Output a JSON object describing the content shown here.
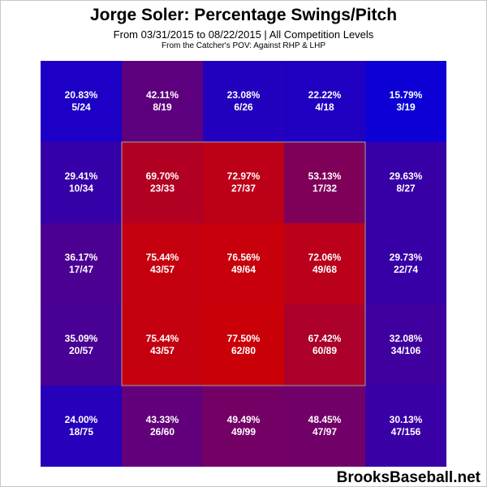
{
  "header": {
    "title": "Jorge Soler: Percentage Swings/Pitch",
    "subtitle": "From 03/31/2015 to 08/22/2015 | All Competition Levels",
    "note": "From the Catcher's POV:  Against RHP & LHP"
  },
  "watermark": "BrooksBaseball.net",
  "colors": {
    "low": "#0a00d8",
    "high": "#d20000",
    "strike_zone_border": "#a0a0a0",
    "text": "#ffffff"
  },
  "chart_data": {
    "type": "heatmap",
    "title": "Jorge Soler: Percentage Swings/Pitch",
    "rows": 5,
    "cols": 5,
    "strike_zone": {
      "rows": [
        1,
        3
      ],
      "cols": [
        1,
        3
      ]
    },
    "grid": false,
    "cells": [
      [
        {
          "pct": "20.83%",
          "frac": "5/24",
          "value": 20.83
        },
        {
          "pct": "42.11%",
          "frac": "8/19",
          "value": 42.11
        },
        {
          "pct": "23.08%",
          "frac": "6/26",
          "value": 23.08
        },
        {
          "pct": "22.22%",
          "frac": "4/18",
          "value": 22.22
        },
        {
          "pct": "15.79%",
          "frac": "3/19",
          "value": 15.79
        }
      ],
      [
        {
          "pct": "29.41%",
          "frac": "10/34",
          "value": 29.41
        },
        {
          "pct": "69.70%",
          "frac": "23/33",
          "value": 69.7
        },
        {
          "pct": "72.97%",
          "frac": "27/37",
          "value": 72.97
        },
        {
          "pct": "53.13%",
          "frac": "17/32",
          "value": 53.13
        },
        {
          "pct": "29.63%",
          "frac": "8/27",
          "value": 29.63
        }
      ],
      [
        {
          "pct": "36.17%",
          "frac": "17/47",
          "value": 36.17
        },
        {
          "pct": "75.44%",
          "frac": "43/57",
          "value": 75.44
        },
        {
          "pct": "76.56%",
          "frac": "49/64",
          "value": 76.56
        },
        {
          "pct": "72.06%",
          "frac": "49/68",
          "value": 72.06
        },
        {
          "pct": "29.73%",
          "frac": "22/74",
          "value": 29.73
        }
      ],
      [
        {
          "pct": "35.09%",
          "frac": "20/57",
          "value": 35.09
        },
        {
          "pct": "75.44%",
          "frac": "43/57",
          "value": 75.44
        },
        {
          "pct": "77.50%",
          "frac": "62/80",
          "value": 77.5
        },
        {
          "pct": "67.42%",
          "frac": "60/89",
          "value": 67.42
        },
        {
          "pct": "32.08%",
          "frac": "34/106",
          "value": 32.08
        }
      ],
      [
        {
          "pct": "24.00%",
          "frac": "18/75",
          "value": 24.0
        },
        {
          "pct": "43.33%",
          "frac": "26/60",
          "value": 43.33
        },
        {
          "pct": "49.49%",
          "frac": "49/99",
          "value": 49.49
        },
        {
          "pct": "48.45%",
          "frac": "47/97",
          "value": 48.45
        },
        {
          "pct": "30.13%",
          "frac": "47/156",
          "value": 30.13
        }
      ]
    ]
  }
}
